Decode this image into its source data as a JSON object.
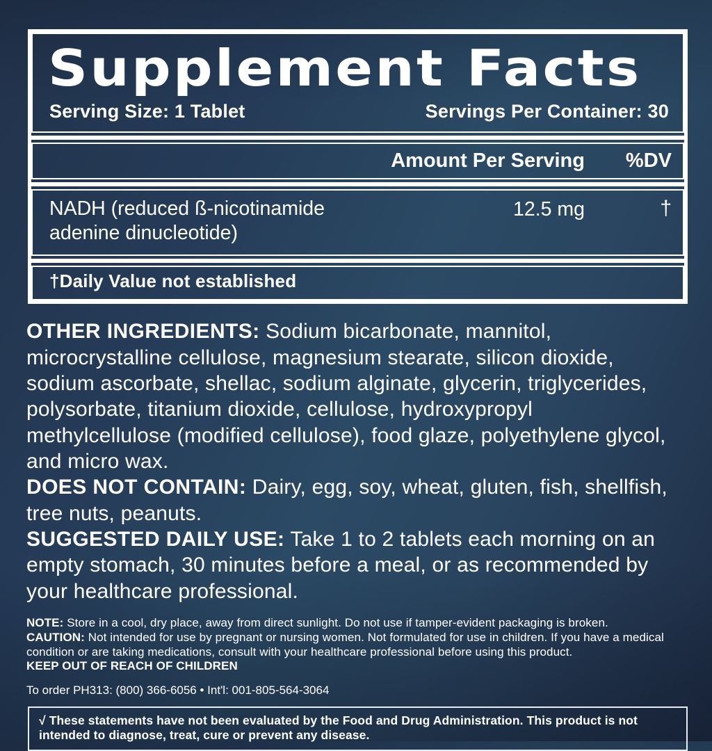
{
  "colors": {
    "background_dark": "#22334c",
    "background_light": "#2b4a65",
    "background_bottom": "#1e2c44",
    "border_white": "#ffffff",
    "text": "#ffffff"
  },
  "panel": {
    "title": "Supplement Facts",
    "serving_size_label": "Serving Size: 1 Tablet",
    "servings_per_container_label": "Servings Per Container: 30",
    "header": {
      "amount_col": "Amount Per Serving",
      "dv_col": "%DV"
    },
    "rows": [
      {
        "name": "NADH (reduced ß-nicotinamide adenine dinucleotide)",
        "amount": "12.5 mg",
        "dv": "†"
      }
    ],
    "footnote": "†Daily Value not established"
  },
  "sections": [
    {
      "lead": "OTHER INGREDIENTS:",
      "text": "Sodium bicarbonate, mannitol, microcrystalline cellulose, magnesium stearate, silicon dioxide, sodium ascorbate, shellac, sodium alginate, glycerin, triglycerides, polysorbate, titanium dioxide, cellulose, hydroxypropyl methylcellulose (modified cellulose), food glaze, polyethylene glycol, and micro wax."
    },
    {
      "lead": "DOES NOT CONTAIN:",
      "text": "Dairy, egg, soy, wheat, gluten, fish, shellfish, tree nuts, peanuts."
    },
    {
      "lead": "SUGGESTED DAILY USE:",
      "text": "Take 1 to 2 tablets each morning on an empty stomach, 30 minutes before a meal, or as recommended by your healthcare professional."
    }
  ],
  "fine_print": {
    "note_lead": "NOTE:",
    "note_text": "Store in a cool, dry place, away from direct sunlight. Do not use if tamper-evident packaging is broken.",
    "caution_lead": "CAUTION:",
    "caution_text": "Not intended for use by pregnant or nursing women. Not formulated for use in children. If you have a medical condition or are taking medications, consult with your healthcare professional before using this product.",
    "keep_out": "KEEP OUT OF REACH OF CHILDREN",
    "order_info": "To order PH313: (800) 366-6056 • Int'l: 001-805-564-3064"
  },
  "disclaimer": {
    "check_symbol": "√",
    "text": "These statements have not been evaluated by the Food and Drug Administration. This product is not intended to diagnose, treat, cure or prevent any disease."
  }
}
